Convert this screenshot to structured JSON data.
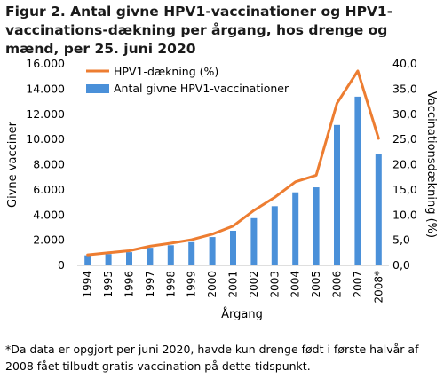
{
  "figure": {
    "title": "Figur 2. Antal givne HPV1-vaccinationer og HPV1-vaccinations-dækning per årgang, hos drenge og mænd, per 25. juni 2020",
    "footnote": "*Da data er opgjort per juni 2020, havde kun drenge født i første halvår af 2008 fået tilbudt gratis vaccination på dette tidspunkt."
  },
  "colors": {
    "bar": "#4a90d9",
    "line": "#ed7d31",
    "axis": "#bfbfbf"
  },
  "chart_data": {
    "type": "bar",
    "title": "",
    "xlabel": "Årgang",
    "ylabel": "Givne vacciner",
    "y2label": "Vaccinationsdækning (%)",
    "categories": [
      "1994",
      "1995",
      "1996",
      "1997",
      "1998",
      "1999",
      "2000",
      "2001",
      "2002",
      "2003",
      "2004",
      "2005",
      "2006",
      "2007",
      "2008*"
    ],
    "ylim": [
      0,
      16000
    ],
    "yticks": [
      "0",
      "2.000",
      "4.000",
      "6.000",
      "8.000",
      "10.000",
      "12.000",
      "14.000",
      "16.000"
    ],
    "y2lim": [
      0,
      40
    ],
    "y2ticks": [
      "0,0",
      "5,0",
      "10,0",
      "15,0",
      "20,0",
      "25,0",
      "30,0",
      "35,0",
      "40,0"
    ],
    "legend_position": "top-left",
    "grid": false,
    "series": [
      {
        "name": "Antal givne HPV1-vaccinationer",
        "type": "bar",
        "axis": "left",
        "values": [
          800,
          900,
          1050,
          1400,
          1600,
          1850,
          2250,
          2750,
          3750,
          4700,
          5800,
          6200,
          11150,
          13400,
          8850
        ]
      },
      {
        "name": "HPV1-dækning (%)",
        "type": "line",
        "axis": "right",
        "values": [
          2.1,
          2.5,
          2.9,
          3.8,
          4.4,
          5.1,
          6.2,
          7.8,
          10.9,
          13.5,
          16.6,
          17.9,
          32.2,
          38.6,
          25.2
        ]
      }
    ]
  }
}
